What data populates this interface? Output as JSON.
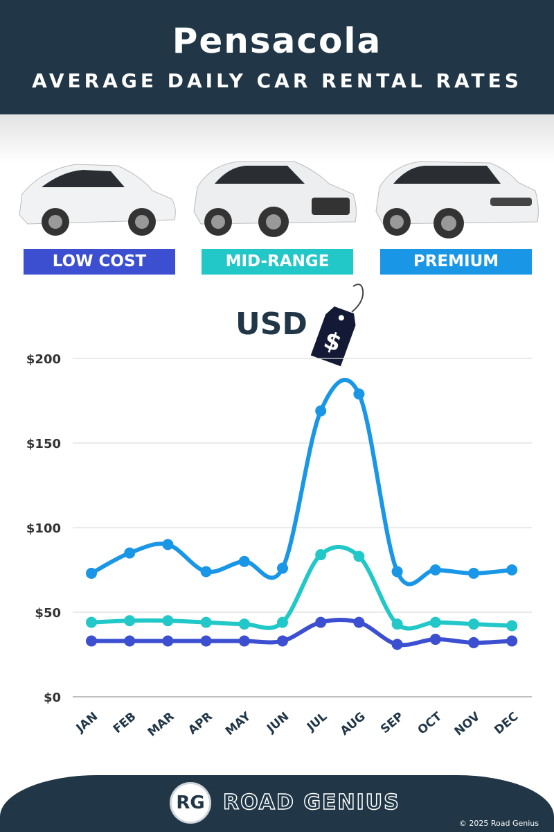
{
  "header": {
    "title": "Pensacola",
    "subtitle": "AVERAGE DAILY CAR RENTAL RATES"
  },
  "tiers": [
    {
      "label": "LOW COST",
      "color": "#3b4fd0"
    },
    {
      "label": "MID-RANGE",
      "color": "#22c7c7"
    },
    {
      "label": "PREMIUM",
      "color": "#1a96e6"
    }
  ],
  "currency_label": "USD",
  "tag_icon": "price-tag-dollar-icon",
  "tag_symbol": "$",
  "chart_data": {
    "type": "line",
    "categories": [
      "JAN",
      "FEB",
      "MAR",
      "APR",
      "MAY",
      "JUN",
      "JUL",
      "AUG",
      "SEP",
      "OCT",
      "NOV",
      "DEC"
    ],
    "ylim": [
      0,
      200
    ],
    "yticks": [
      0,
      50,
      100,
      150,
      200
    ],
    "ytick_labels": [
      "$0",
      "$50",
      "$100",
      "$150",
      "$200"
    ],
    "grid": true,
    "smooth": true,
    "series": [
      {
        "name": "PREMIUM",
        "color": "#1a96e6",
        "values": [
          73,
          85,
          90,
          74,
          80,
          76,
          169,
          179,
          74,
          75,
          73,
          75
        ]
      },
      {
        "name": "MID-RANGE",
        "color": "#22c7c7",
        "values": [
          44,
          45,
          45,
          44,
          43,
          44,
          84,
          83,
          43,
          44,
          43,
          42
        ]
      },
      {
        "name": "LOW COST",
        "color": "#3b4fd0",
        "values": [
          33,
          33,
          33,
          33,
          33,
          33,
          44,
          44,
          31,
          34,
          32,
          33
        ]
      }
    ]
  },
  "footer": {
    "logo_text": "RG",
    "brand": "ROAD GENIUS",
    "copyright": "© 2025 Road Genius"
  }
}
